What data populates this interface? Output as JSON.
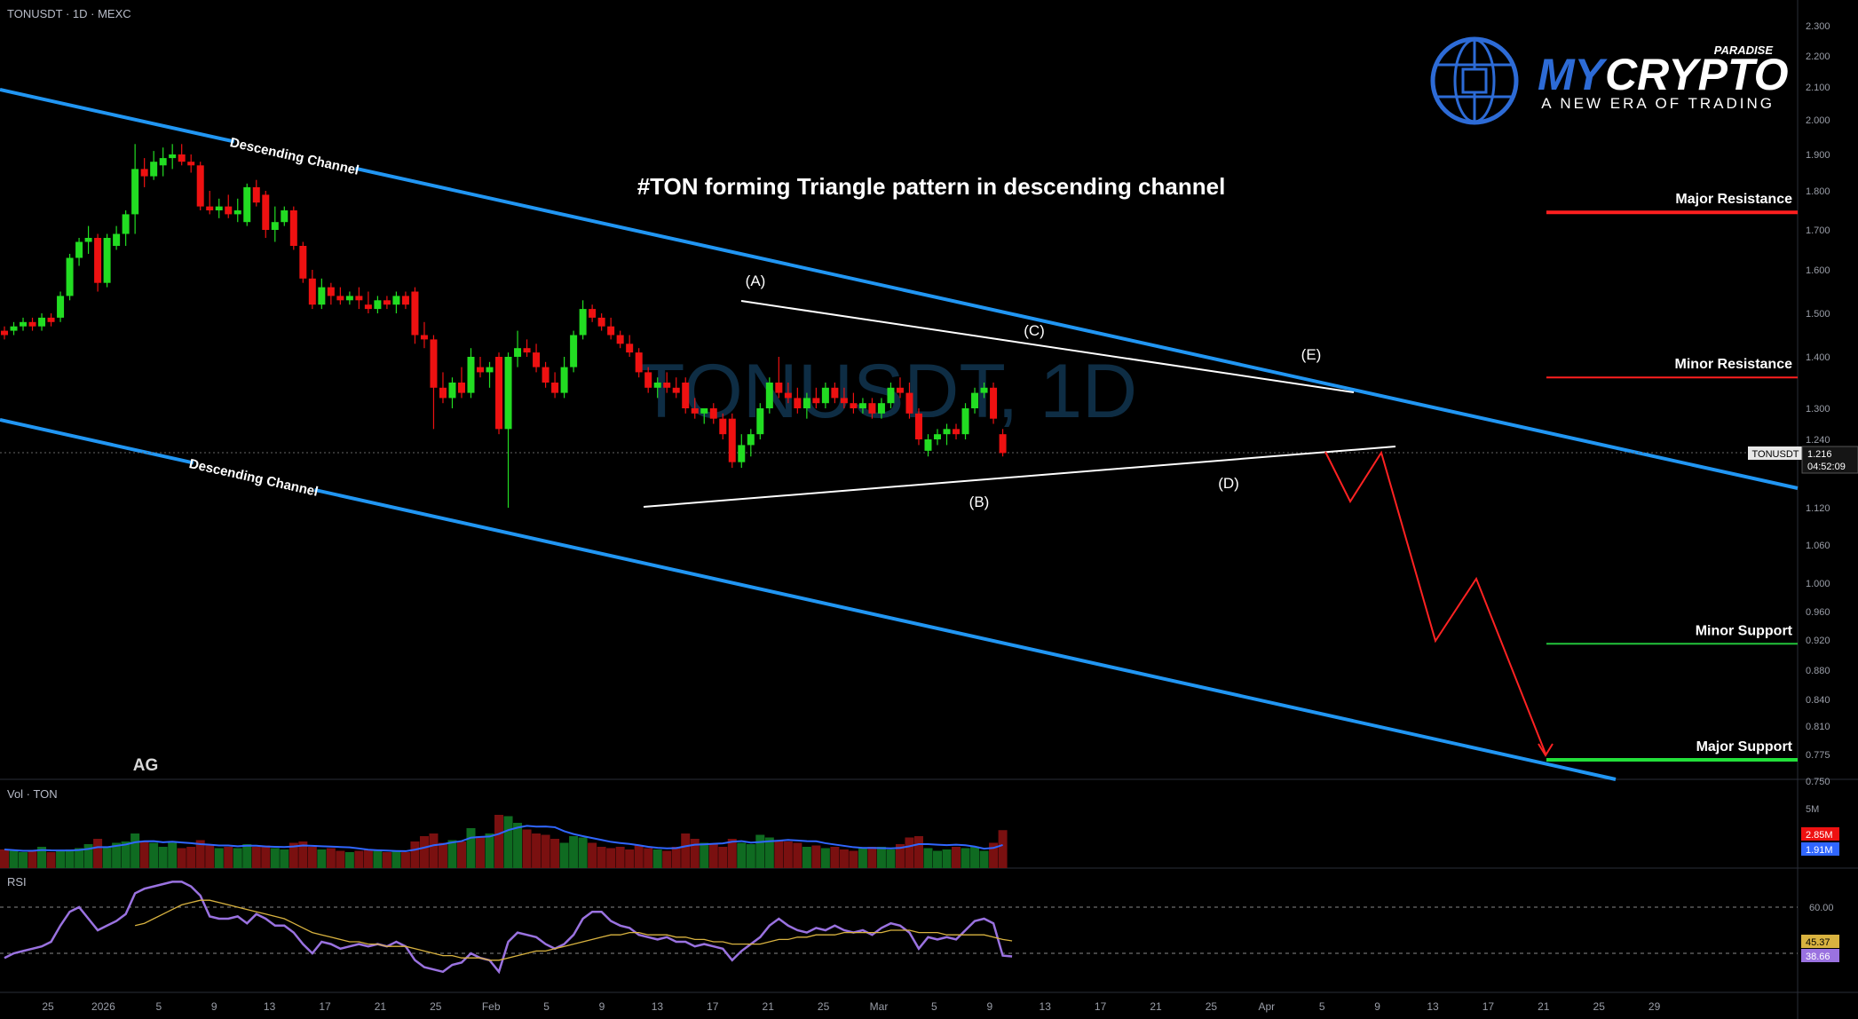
{
  "header": {
    "symbol_line": "TONUSDT · 1D · MEXC"
  },
  "watermark": "TONUSDT, 1D",
  "logo": {
    "brand_my": "MY",
    "brand_crypto": "CRYPTO",
    "brand_paradise": "PARADISE",
    "tagline": "A NEW ERA OF TRADING"
  },
  "title": "#TON forming Triangle pattern in descending channel",
  "signature": "AG",
  "levels": {
    "major_resistance": {
      "label": "Major Resistance",
      "price": 1.745,
      "color": "#ff1f1f"
    },
    "minor_resistance": {
      "label": "Minor Resistance",
      "price": 1.36,
      "color": "#ff1f1f"
    },
    "minor_support": {
      "label": "Minor Support",
      "price": 0.915,
      "color": "#22c33a"
    },
    "major_support": {
      "label": "Major Support",
      "price": 0.77,
      "color": "#22e03a"
    }
  },
  "wave_labels": [
    "(A)",
    "(B)",
    "(C)",
    "(D)",
    "(E)"
  ],
  "channel_label": "Descending Channel",
  "price_tag": {
    "symbol": "TONUSDT",
    "price": "1.216",
    "countdown": "04:52:09"
  },
  "volume_panel": {
    "title": "Vol · TON",
    "scale_label": "5M",
    "last_value": "2.85M",
    "ma_value": "1.91M"
  },
  "rsi_panel": {
    "title": "RSI",
    "level_label": "60.00",
    "rsi_value": "38.66",
    "ma_value": "45.37"
  },
  "colors": {
    "up": "#22dd22",
    "down": "#ee1111",
    "channel": "#2196f3",
    "projection": "#ff2222",
    "rsi": "#9a72e0",
    "rsi_ma": "#d9b340",
    "vol_ma": "#3066ff"
  },
  "chart_data": {
    "type": "candlestick",
    "title": "#TON forming Triangle pattern in descending channel",
    "price_axis_ticks": [
      "2.300",
      "2.200",
      "2.100",
      "2.000",
      "1.900",
      "1.800",
      "1.700",
      "1.600",
      "1.500",
      "1.400",
      "1.300",
      "1.240",
      "1.120",
      "1.060",
      "1.000",
      "0.960",
      "0.920",
      "0.880",
      "0.840",
      "0.810",
      "0.775",
      "0.750"
    ],
    "date_axis_ticks": [
      "25",
      "2026",
      "5",
      "9",
      "13",
      "17",
      "21",
      "25",
      "Feb",
      "5",
      "9",
      "13",
      "17",
      "21",
      "25",
      "Mar",
      "5",
      "9",
      "13",
      "17",
      "21",
      "25",
      "Apr",
      "5",
      "9",
      "13",
      "17",
      "21",
      "25",
      "29"
    ],
    "candles_ohlc": [
      [
        1.46,
        1.47,
        1.44,
        1.45
      ],
      [
        1.46,
        1.48,
        1.45,
        1.47
      ],
      [
        1.47,
        1.49,
        1.46,
        1.48
      ],
      [
        1.48,
        1.49,
        1.46,
        1.47
      ],
      [
        1.47,
        1.5,
        1.46,
        1.49
      ],
      [
        1.49,
        1.5,
        1.47,
        1.48
      ],
      [
        1.49,
        1.55,
        1.48,
        1.54
      ],
      [
        1.54,
        1.64,
        1.53,
        1.63
      ],
      [
        1.63,
        1.68,
        1.61,
        1.67
      ],
      [
        1.67,
        1.71,
        1.64,
        1.68
      ],
      [
        1.68,
        1.69,
        1.55,
        1.57
      ],
      [
        1.57,
        1.69,
        1.56,
        1.68
      ],
      [
        1.66,
        1.71,
        1.65,
        1.69
      ],
      [
        1.69,
        1.75,
        1.66,
        1.74
      ],
      [
        1.74,
        1.93,
        1.69,
        1.86
      ],
      [
        1.86,
        1.89,
        1.81,
        1.84
      ],
      [
        1.84,
        1.91,
        1.83,
        1.88
      ],
      [
        1.87,
        1.92,
        1.84,
        1.89
      ],
      [
        1.89,
        1.93,
        1.86,
        1.9
      ],
      [
        1.9,
        1.93,
        1.87,
        1.88
      ],
      [
        1.88,
        1.9,
        1.85,
        1.87
      ],
      [
        1.87,
        1.88,
        1.75,
        1.76
      ],
      [
        1.76,
        1.8,
        1.74,
        1.75
      ],
      [
        1.75,
        1.78,
        1.73,
        1.76
      ],
      [
        1.76,
        1.79,
        1.73,
        1.74
      ],
      [
        1.74,
        1.78,
        1.72,
        1.75
      ],
      [
        1.72,
        1.82,
        1.71,
        1.81
      ],
      [
        1.81,
        1.83,
        1.76,
        1.77
      ],
      [
        1.79,
        1.8,
        1.68,
        1.7
      ],
      [
        1.7,
        1.76,
        1.67,
        1.72
      ],
      [
        1.72,
        1.76,
        1.71,
        1.75
      ],
      [
        1.75,
        1.76,
        1.65,
        1.66
      ],
      [
        1.66,
        1.67,
        1.57,
        1.58
      ],
      [
        1.58,
        1.6,
        1.51,
        1.52
      ],
      [
        1.52,
        1.58,
        1.51,
        1.56
      ],
      [
        1.56,
        1.57,
        1.52,
        1.54
      ],
      [
        1.54,
        1.56,
        1.52,
        1.53
      ],
      [
        1.53,
        1.55,
        1.52,
        1.54
      ],
      [
        1.54,
        1.56,
        1.51,
        1.53
      ],
      [
        1.52,
        1.55,
        1.5,
        1.51
      ],
      [
        1.51,
        1.54,
        1.5,
        1.53
      ],
      [
        1.53,
        1.54,
        1.51,
        1.52
      ],
      [
        1.52,
        1.55,
        1.5,
        1.54
      ],
      [
        1.54,
        1.55,
        1.51,
        1.52
      ],
      [
        1.55,
        1.56,
        1.43,
        1.45
      ],
      [
        1.45,
        1.48,
        1.42,
        1.44
      ],
      [
        1.44,
        1.45,
        1.26,
        1.34
      ],
      [
        1.34,
        1.37,
        1.31,
        1.32
      ],
      [
        1.32,
        1.36,
        1.3,
        1.35
      ],
      [
        1.35,
        1.38,
        1.32,
        1.33
      ],
      [
        1.33,
        1.42,
        1.32,
        1.4
      ],
      [
        1.38,
        1.4,
        1.36,
        1.37
      ],
      [
        1.37,
        1.39,
        1.34,
        1.38
      ],
      [
        1.4,
        1.41,
        1.25,
        1.26
      ],
      [
        1.26,
        1.41,
        1.12,
        1.4
      ],
      [
        1.4,
        1.46,
        1.38,
        1.42
      ],
      [
        1.42,
        1.44,
        1.4,
        1.41
      ],
      [
        1.41,
        1.43,
        1.37,
        1.38
      ],
      [
        1.38,
        1.39,
        1.34,
        1.35
      ],
      [
        1.35,
        1.37,
        1.32,
        1.33
      ],
      [
        1.33,
        1.4,
        1.32,
        1.38
      ],
      [
        1.38,
        1.46,
        1.37,
        1.45
      ],
      [
        1.45,
        1.53,
        1.44,
        1.51
      ],
      [
        1.51,
        1.52,
        1.48,
        1.49
      ],
      [
        1.49,
        1.5,
        1.46,
        1.47
      ],
      [
        1.47,
        1.49,
        1.44,
        1.45
      ],
      [
        1.45,
        1.46,
        1.42,
        1.43
      ],
      [
        1.43,
        1.45,
        1.4,
        1.41
      ],
      [
        1.41,
        1.42,
        1.36,
        1.37
      ],
      [
        1.37,
        1.38,
        1.33,
        1.34
      ],
      [
        1.34,
        1.36,
        1.32,
        1.35
      ],
      [
        1.35,
        1.37,
        1.33,
        1.34
      ],
      [
        1.34,
        1.36,
        1.32,
        1.33
      ],
      [
        1.35,
        1.36,
        1.29,
        1.3
      ],
      [
        1.3,
        1.32,
        1.28,
        1.29
      ],
      [
        1.29,
        1.3,
        1.27,
        1.3
      ],
      [
        1.3,
        1.31,
        1.27,
        1.28
      ],
      [
        1.28,
        1.29,
        1.24,
        1.25
      ],
      [
        1.28,
        1.29,
        1.19,
        1.2
      ],
      [
        1.2,
        1.25,
        1.19,
        1.23
      ],
      [
        1.23,
        1.26,
        1.21,
        1.25
      ],
      [
        1.25,
        1.31,
        1.24,
        1.3
      ],
      [
        1.3,
        1.36,
        1.29,
        1.35
      ],
      [
        1.35,
        1.4,
        1.32,
        1.33
      ],
      [
        1.33,
        1.35,
        1.31,
        1.32
      ],
      [
        1.32,
        1.34,
        1.29,
        1.3
      ],
      [
        1.3,
        1.33,
        1.28,
        1.32
      ],
      [
        1.32,
        1.34,
        1.3,
        1.31
      ],
      [
        1.31,
        1.35,
        1.3,
        1.34
      ],
      [
        1.34,
        1.35,
        1.31,
        1.32
      ],
      [
        1.32,
        1.34,
        1.3,
        1.31
      ],
      [
        1.31,
        1.33,
        1.29,
        1.3
      ],
      [
        1.3,
        1.32,
        1.29,
        1.31
      ],
      [
        1.31,
        1.32,
        1.28,
        1.29
      ],
      [
        1.29,
        1.32,
        1.28,
        1.31
      ],
      [
        1.31,
        1.35,
        1.3,
        1.34
      ],
      [
        1.34,
        1.36,
        1.32,
        1.33
      ],
      [
        1.33,
        1.35,
        1.28,
        1.29
      ],
      [
        1.29,
        1.3,
        1.23,
        1.24
      ],
      [
        1.22,
        1.25,
        1.21,
        1.24
      ],
      [
        1.24,
        1.26,
        1.23,
        1.25
      ],
      [
        1.25,
        1.27,
        1.23,
        1.26
      ],
      [
        1.26,
        1.27,
        1.24,
        1.25
      ],
      [
        1.25,
        1.31,
        1.24,
        1.3
      ],
      [
        1.3,
        1.34,
        1.29,
        1.33
      ],
      [
        1.33,
        1.35,
        1.32,
        1.34
      ],
      [
        1.34,
        1.35,
        1.27,
        1.28
      ],
      [
        1.25,
        1.26,
        1.21,
        1.216
      ]
    ],
    "volume_millions": [
      1.4,
      1.3,
      1.2,
      1.3,
      1.6,
      1.2,
      1.3,
      1.4,
      1.5,
      1.8,
      2.2,
      1.6,
      1.9,
      2.0,
      2.6,
      2.0,
      1.9,
      1.6,
      1.9,
      1.5,
      1.6,
      2.1,
      1.7,
      1.5,
      1.6,
      1.5,
      1.8,
      1.6,
      1.7,
      1.5,
      1.4,
      1.9,
      2.0,
      1.6,
      1.4,
      1.5,
      1.3,
      1.2,
      1.3,
      1.4,
      1.3,
      1.2,
      1.3,
      1.2,
      2.0,
      2.4,
      2.6,
      1.9,
      2.1,
      2.0,
      3.0,
      2.4,
      2.6,
      4.0,
      3.9,
      3.4,
      2.9,
      2.6,
      2.5,
      2.2,
      1.9,
      2.4,
      2.3,
      1.9,
      1.6,
      1.5,
      1.6,
      1.4,
      1.7,
      1.5,
      1.4,
      1.3,
      1.6,
      2.6,
      2.2,
      1.9,
      1.8,
      1.6,
      2.2,
      1.9,
      1.8,
      2.5,
      2.3,
      2.1,
      2.0,
      1.9,
      1.6,
      1.7,
      1.5,
      1.6,
      1.4,
      1.3,
      1.5,
      1.6,
      1.6,
      1.4,
      1.8,
      2.3,
      2.4,
      1.5,
      1.3,
      1.4,
      1.6,
      1.5,
      1.6,
      1.3,
      1.9,
      2.85
    ],
    "rsi_values": [
      38,
      40,
      41,
      42,
      43,
      45,
      52,
      58,
      60,
      55,
      50,
      52,
      54,
      57,
      66,
      68,
      69,
      70,
      71,
      71,
      69,
      65,
      56,
      55,
      55,
      56,
      53,
      57,
      55,
      52,
      52,
      49,
      44,
      40,
      45,
      44,
      42,
      43,
      44,
      43,
      44,
      43,
      45,
      43,
      37,
      34,
      33,
      32,
      35,
      36,
      40,
      38,
      37,
      32,
      45,
      49,
      48,
      47,
      44,
      42,
      44,
      48,
      55,
      58,
      58,
      54,
      52,
      51,
      48,
      47,
      46,
      47,
      45,
      45,
      43,
      44,
      43,
      42,
      37,
      41,
      44,
      47,
      52,
      55,
      52,
      50,
      49,
      51,
      50,
      52,
      50,
      49,
      50,
      48,
      51,
      53,
      52,
      49,
      42,
      47,
      46,
      47,
      46,
      50,
      54,
      55,
      53,
      39,
      38.66
    ],
    "rsi_ma_values": [
      null,
      null,
      null,
      null,
      null,
      null,
      null,
      null,
      null,
      null,
      null,
      null,
      null,
      null,
      52,
      53,
      55,
      57,
      59,
      61,
      62,
      63,
      63,
      62,
      61,
      60,
      59,
      58,
      57,
      56,
      55,
      53,
      51,
      49,
      48,
      47,
      46,
      45,
      45,
      44,
      44,
      43,
      43,
      43,
      42,
      41,
      40,
      39,
      39,
      38,
      38,
      38,
      37,
      37,
      38,
      39,
      40,
      41,
      41,
      42,
      43,
      44,
      45,
      46,
      47,
      48,
      48,
      49,
      49,
      48,
      48,
      48,
      47,
      47,
      46,
      46,
      45,
      45,
      44,
      44,
      44,
      44,
      45,
      46,
      46,
      47,
      47,
      48,
      48,
      48,
      49,
      49,
      49,
      49,
      49,
      50,
      50,
      50,
      49,
      49,
      49,
      48,
      48,
      48,
      48,
      48,
      47,
      46,
      45.37
    ],
    "triangle_points": [
      {
        "label": "(A)",
        "value": 1.53
      },
      {
        "label": "(B)",
        "value": 1.12
      },
      {
        "label": "(C)",
        "value": 1.4
      },
      {
        "label": "(D)",
        "value": 1.21
      },
      {
        "label": "(E)",
        "value": 1.34
      }
    ],
    "projection_path_prices": [
      1.21,
      1.12,
      1.22,
      0.92,
      1.01,
      0.77
    ]
  }
}
